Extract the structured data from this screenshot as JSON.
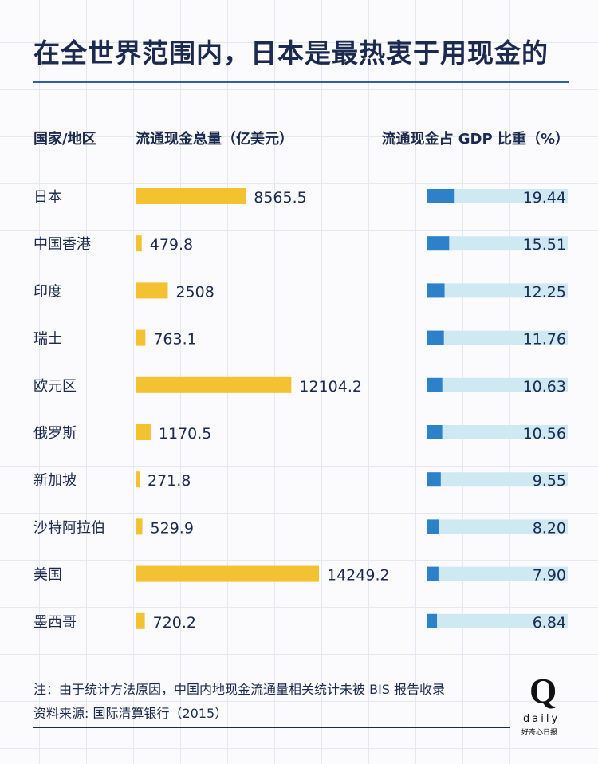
{
  "title": "在全世界范围内，日本是最热衷于用现金的",
  "headers": {
    "country": "国家/地区",
    "cash": "流通现金总量（亿美元）",
    "gdp": "流通现金占 GDP 比重（%）"
  },
  "colors": {
    "cash_bar": "#f2c231",
    "gdp_bar": "#2e80c8",
    "gdp_track": "#cfe9f3",
    "title_rule": "#2f5fa7"
  },
  "chart_data": {
    "type": "bar",
    "categories": [
      "日本",
      "中国香港",
      "印度",
      "瑞士",
      "欧元区",
      "俄罗斯",
      "新加坡",
      "沙特阿拉伯",
      "美国",
      "墨西哥"
    ],
    "series": [
      {
        "values": [
          8565.5,
          479.8,
          2508,
          763.1,
          12104.2,
          1170.5,
          271.8,
          529.9,
          14249.2,
          720.2
        ],
        "labels": [
          "8565.5",
          "479.8",
          "2508",
          "763.1",
          "12104.2",
          "1170.5",
          "271.8",
          "529.9",
          "14249.2",
          "720.2"
        ]
      },
      {
        "values": [
          19.44,
          15.51,
          12.25,
          11.76,
          10.63,
          10.56,
          9.55,
          8.2,
          7.9,
          6.84
        ],
        "labels": [
          "19.44",
          "15.51",
          "12.25",
          "11.76",
          "10.63",
          "10.56",
          "9.55",
          "8.20",
          "7.90",
          "6.84"
        ]
      }
    ],
    "xlabel": "",
    "ylabel": "",
    "gdp_xlim": [
      0,
      100
    ]
  },
  "notes": [
    "注：由于统计方法原因，中国内地现金流通量相关统计未被 BIS 报告收录",
    "资料来源: 国际清算银行（2015）"
  ],
  "logo": {
    "mark": "Q",
    "word": "daily",
    "sub": "好奇心日报"
  }
}
